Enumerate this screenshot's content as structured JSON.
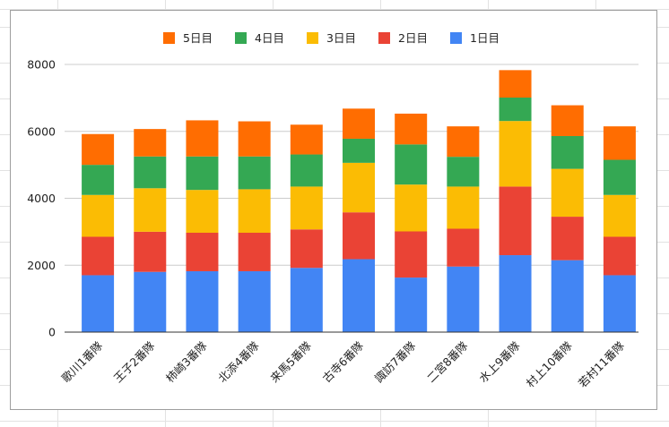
{
  "chart_data": {
    "type": "bar",
    "stacked": true,
    "title": "",
    "xlabel": "",
    "ylabel": "",
    "ylim": [
      0,
      8000
    ],
    "yticks": [
      "0",
      "2000",
      "4000",
      "6000",
      "8000"
    ],
    "grid": true,
    "legend_position": "top",
    "legend_order": [
      "5日目",
      "4日目",
      "3日目",
      "2日目",
      "1日目"
    ],
    "categories": [
      "歌川1番隊",
      "王子2番隊",
      "柿崎3番隊",
      "北添4番隊",
      "来馬5番隊",
      "古寺6番隊",
      "諏訪7番隊",
      "二宮8番隊",
      "水上9番隊",
      "村上10番隊",
      "若村11番隊"
    ],
    "series": [
      {
        "name": "1日目",
        "color": "#4285f4",
        "values": [
          1700,
          1800,
          1820,
          1820,
          1920,
          2180,
          1630,
          1960,
          2300,
          2150,
          1700
        ]
      },
      {
        "name": "2日目",
        "color": "#ea4335",
        "values": [
          1150,
          1200,
          1150,
          1150,
          1150,
          1400,
          1380,
          1130,
          2050,
          1300,
          1150
        ]
      },
      {
        "name": "3日目",
        "color": "#fbbc04",
        "values": [
          1250,
          1300,
          1280,
          1300,
          1280,
          1480,
          1400,
          1260,
          1960,
          1430,
          1250
        ]
      },
      {
        "name": "4日目",
        "color": "#34a853",
        "values": [
          900,
          950,
          1000,
          980,
          960,
          720,
          1200,
          890,
          700,
          980,
          1050
        ]
      },
      {
        "name": "5日目",
        "color": "#ff6d01",
        "values": [
          920,
          820,
          1080,
          1050,
          890,
          900,
          920,
          910,
          820,
          920,
          1000
        ]
      }
    ]
  }
}
